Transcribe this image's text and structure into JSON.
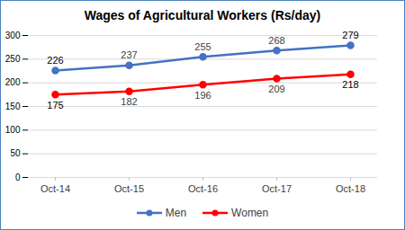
{
  "chart_data": {
    "type": "line",
    "title": "Wages of Agricultural Workers (Rs/day)",
    "categories": [
      "Oct-14",
      "Oct-15",
      "Oct-16",
      "Oct-17",
      "Oct-18"
    ],
    "series": [
      {
        "name": "Men",
        "color": "#4472c4",
        "values": [
          226,
          237,
          255,
          268,
          279
        ]
      },
      {
        "name": "Women",
        "color": "#ff0000",
        "values": [
          175,
          182,
          196,
          209,
          218
        ]
      }
    ],
    "ylim": [
      0,
      300
    ],
    "yticks": [
      0,
      50,
      100,
      150,
      200,
      250,
      300
    ],
    "grid": true,
    "tick_labels": "x",
    "data_labels": true,
    "legend": "bottom",
    "marker": "circle"
  }
}
